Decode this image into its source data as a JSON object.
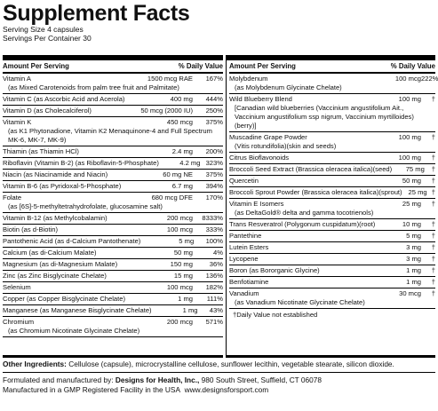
{
  "header": {
    "title": "Supplement Facts",
    "serving_size": "Serving Size 4 capsules",
    "servings_per_container": "Servings Per Container 30"
  },
  "left": {
    "columns": [
      "Amount Per Serving",
      "% Daily Value"
    ],
    "rows": [
      {
        "name": "Vitamin A",
        "amount": "1500 mcg RAE",
        "daily_value": "167%",
        "detail": "(as Mixed Carotenoids from palm tree fruit and Palmitate)"
      },
      {
        "name": "Vitamin C (as Ascorbic Acid and Acerola)",
        "amount": "400 mg",
        "daily_value": "444%"
      },
      {
        "name": "Vitamin D (as Cholecalciferol)",
        "amount": "50 mcg (2000 IU)",
        "daily_value": "250%"
      },
      {
        "name": "Vitamin K",
        "amount": "450 mcg",
        "daily_value": "375%",
        "detail": "(as K1 Phytonadione, Vitamin K2 Menaquinone-4 and Full Spectrum MK-6, MK-7, MK-9)"
      },
      {
        "name": "Thiamin (as Thiamin HCl)",
        "amount": "2.4 mg",
        "daily_value": "200%"
      },
      {
        "name": "Riboflavin (Vitamin B-2) (as Riboflavin-5-Phosphate)",
        "amount": "4.2 mg",
        "daily_value": "323%"
      },
      {
        "name": "Niacin (as Niacinamide and Niacin)",
        "amount": "60 mg NE",
        "daily_value": "375%"
      },
      {
        "name": "Vitamin B-6 (as Pyridoxal-5-Phosphate)",
        "amount": "6.7 mg",
        "daily_value": "394%"
      },
      {
        "name": "Folate",
        "amount": "680 mcg DFE",
        "daily_value": "170%",
        "detail": "(as [6S]-5-methyltetrahydrofolate, glucosamine salt)"
      },
      {
        "name": "Vitamin B-12 (as Methylcobalamin)",
        "amount": "200 mcg",
        "daily_value": "8333%"
      },
      {
        "name": "Biotin (as d-Biotin)",
        "amount": "100 mcg",
        "daily_value": "333%"
      },
      {
        "name": "Pantothenic Acid (as d-Calcium Pantothenate)",
        "amount": "5 mg",
        "daily_value": "100%"
      },
      {
        "name": "Calcium (as di-Calcium Malate)",
        "amount": "50 mg",
        "daily_value": "4%"
      },
      {
        "name": "Magnesium (as di-Magnesium Malate)",
        "amount": "150 mg",
        "daily_value": "36%"
      },
      {
        "name": "Zinc (as Zinc Bisglycinate Chelate)",
        "amount": "15 mg",
        "daily_value": "136%"
      },
      {
        "name": "Selenium",
        "amount": "100 mcg",
        "daily_value": "182%"
      },
      {
        "name": "Copper (as Copper Bisglycinate Chelate)",
        "amount": "1 mg",
        "daily_value": "111%"
      },
      {
        "name": "Manganese (as Manganese Bisglycinate Chelate)",
        "amount": "1 mg",
        "daily_value": "43%"
      },
      {
        "name": "Chromium",
        "amount": "200 mcg",
        "daily_value": "571%",
        "detail": "(as Chromium Nicotinate Glycinate Chelate)"
      }
    ]
  },
  "right": {
    "columns": [
      "Amount Per Serving",
      "% Daily Value"
    ],
    "rows": [
      {
        "name": "Molybdenum",
        "amount": "100 mcg",
        "daily_value": "222%",
        "detail": "(as Molybdenum Glycinate Chelate)"
      },
      {
        "name": "Wild Blueberry Blend",
        "amount": "100 mg",
        "daily_value": "†",
        "detail": "[Canadian wild blueberries (Vaccinium angustifolium Ait., Vaccinium angustifolium ssp nigrum, Vaccinium myrtilloides)(berry)]"
      },
      {
        "name": "Muscadine Grape Powder",
        "amount": "100 mg",
        "daily_value": "†",
        "detail": "(Vitis rotundifolia)(skin and seeds)"
      },
      {
        "name": "Citrus Bioflavonoids",
        "amount": "100 mg",
        "daily_value": "†"
      },
      {
        "name": "Broccoli Seed Extract (Brassica oleracea italica)(seed)",
        "amount": "75 mg",
        "daily_value": "†"
      },
      {
        "name": "Quercetin",
        "amount": "50 mg",
        "daily_value": "†"
      },
      {
        "name": "Broccoli Sprout Powder (Brassica oleracea italica)(sprout)",
        "amount": "25 mg",
        "daily_value": "†"
      },
      {
        "name": "Vitamin E Isomers",
        "amount": "25 mg",
        "daily_value": "†",
        "detail": "(as DeltaGold® delta and gamma tocotrienols)"
      },
      {
        "name": "Trans Resveratrol (Polygonum cuspidatum)(root)",
        "amount": "10 mg",
        "daily_value": "†"
      },
      {
        "name": "Pantethine",
        "amount": "5 mg",
        "daily_value": "†"
      },
      {
        "name": "Lutein Esters",
        "amount": "3 mg",
        "daily_value": "†"
      },
      {
        "name": "Lycopene",
        "amount": "3 mg",
        "daily_value": "†"
      },
      {
        "name": "Boron (as Bororganic Glycine)",
        "amount": "1 mg",
        "daily_value": "†"
      },
      {
        "name": "Benfotiamine",
        "amount": "1 mg",
        "daily_value": "†"
      },
      {
        "name": "Vanadium",
        "amount": "30 mcg",
        "daily_value": "†",
        "detail": "(as Vanadium Nicotinate Glycinate Chelate)"
      }
    ],
    "footnote": "†Daily Value not established"
  },
  "footer": {
    "other_ingredients_label": "Other Ingredients:",
    "other_ingredients": "Cellulose (capsule), microcrystalline cellulose, sunflower lecithin, vegetable stearate, silicon dioxide.",
    "manufacturer_prefix": "Formulated and manufactured by:",
    "manufacturer_name": "Designs for Health, Inc.,",
    "manufacturer_address": "980 South Street, Suffield, CT 06078",
    "facility_line": "Manufactured in a GMP Registered Facility in the USA",
    "website": "www.designsforsport.com"
  }
}
